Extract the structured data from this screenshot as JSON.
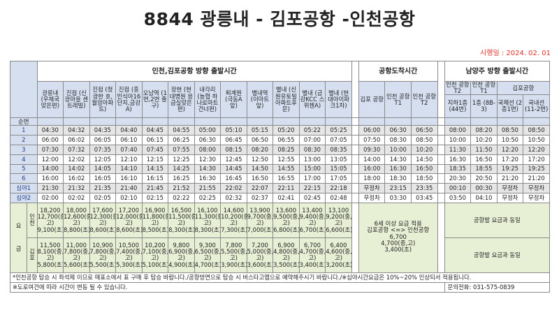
{
  "title": "8844 광릉내 - 김포공항 -인천공항",
  "effective_date": "시행일 : 2024. 02. 01",
  "headers": {
    "group1": "인천,김포공항 방향 출발시간",
    "group2": "공항도착시간",
    "group3": "남양주 방향 출발시간",
    "seq": "순번",
    "stops": [
      "광릉내 (우체국 맞은편)",
      "진접 (신광마을 센트레빌)",
      "진접 (청광한 호, 월암아파트)",
      "진접 (흥인식아16단지,금강A)",
      "오남역 (1번,2번 출구)",
      "장현 (현대병원 응급실맞은편)",
      "내각리 (농협 하나로마트 건너편)",
      "퇴계원 (극동A 앞)",
      "별내역 (이마트 앞)",
      "별내 (신원유토빌아파트후문)",
      "별내 (금강KCC 스위첸A)",
      "별내 (현대아이파크1차)"
    ],
    "arrive": [
      "김포 공항",
      "인천 공항 T1",
      "인천 공항 T2"
    ],
    "ret_top": [
      "인천 공항 T2",
      "인천 공항 T1"
    ],
    "ret_gimpo": "김포공항",
    "ret_sub": [
      "지하1층 (44번)",
      "1층 (8B-3)",
      "국제선 (2층1번)",
      "국내선 (11-2번)"
    ]
  },
  "rows": [
    {
      "seq": "1",
      "dep": [
        "04:30",
        "04:32",
        "04:35",
        "04:40",
        "04:45",
        "04:55",
        "05:00",
        "05:10",
        "05:15",
        "05:20",
        "05:22",
        "05:25"
      ],
      "arr": [
        "06:00",
        "06:30",
        "06:50"
      ],
      "ret": [
        "08:00",
        "08:20",
        "08:50",
        "08:50"
      ]
    },
    {
      "seq": "2",
      "dep": [
        "06:00",
        "06:02",
        "06:05",
        "06:10",
        "06:15",
        "06:25",
        "06:30",
        "06:45",
        "06:50",
        "06:55",
        "07:00",
        "07:05"
      ],
      "arr": [
        "07:50",
        "08:30",
        "08:50"
      ],
      "ret": [
        "10:00",
        "10:20",
        "10:50",
        "10:50"
      ]
    },
    {
      "seq": "3",
      "dep": [
        "07:30",
        "07:32",
        "07:35",
        "07:40",
        "07:45",
        "07:55",
        "08:00",
        "08:15",
        "08:20",
        "08:25",
        "08:30",
        "08:35"
      ],
      "arr": [
        "09:30",
        "10:00",
        "10:20"
      ],
      "ret": [
        "11:30",
        "11:50",
        "12:20",
        "12:20"
      ]
    },
    {
      "seq": "4",
      "dep": [
        "12:00",
        "12:02",
        "12:05",
        "12:10",
        "12:15",
        "12:25",
        "12:30",
        "12:45",
        "12:50",
        "12:55",
        "13:00",
        "13:05"
      ],
      "arr": [
        "14:00",
        "14:30",
        "14:50"
      ],
      "ret": [
        "16:30",
        "16:50",
        "17:20",
        "17:20"
      ]
    },
    {
      "seq": "5",
      "dep": [
        "14:00",
        "14:02",
        "14:05",
        "14:10",
        "14:15",
        "14:25",
        "14:30",
        "14:45",
        "14:50",
        "14:55",
        "15:00",
        "15:05"
      ],
      "arr": [
        "16:00",
        "16:30",
        "16:50"
      ],
      "ret": [
        "18:35",
        "18:55",
        "19:25",
        "19:25"
      ]
    },
    {
      "seq": "6",
      "dep": [
        "16:00",
        "16:02",
        "16:05",
        "16:10",
        "16:15",
        "16:25",
        "16:30",
        "16:45",
        "16:50",
        "16:55",
        "17:00",
        "17:05"
      ],
      "arr": [
        "18:00",
        "18:30",
        "18:50"
      ],
      "ret": [
        "20:30",
        "20:50",
        "21:20",
        "21:20"
      ]
    },
    {
      "seq": "심야1",
      "dep": [
        "21:30",
        "21:32",
        "21:35",
        "21:40",
        "21:45",
        "21:52",
        "21:55",
        "22:02",
        "22:07",
        "22:11",
        "22:15",
        "22:18"
      ],
      "arr": [
        "무정차",
        "23:15",
        "23:35"
      ],
      "ret": [
        "00:10",
        "00:30",
        "무정차",
        "무정차"
      ]
    },
    {
      "seq": "심야2",
      "dep": [
        "02:00",
        "02:02",
        "02:05",
        "02:10",
        "02:15",
        "02:22",
        "02:25",
        "02:32",
        "02:37",
        "02:41",
        "02:45",
        "02:48"
      ],
      "arr": [
        "무정차",
        "03:30",
        "03:45"
      ],
      "ret": [
        "03:50",
        "04:10",
        "무정차",
        "무정차"
      ]
    }
  ],
  "fare": {
    "label_top": "요",
    "label_bottom": "금",
    "incheon_label": "인천",
    "gimpo_label": "김포",
    "incheon": [
      [
        "18,200",
        "12,700(중,고)",
        "9,100(초)"
      ],
      [
        "18,000",
        "12,600(중,고)",
        "8,800(초)"
      ],
      [
        "17,600",
        "12,300(중,고)",
        "8,600(초)"
      ],
      [
        "17,200",
        "12,000(중,고)",
        "8,600(초)"
      ],
      [
        "16,900",
        "11,800(중,고)",
        "8,500(초)"
      ],
      [
        "16,500",
        "11,500(중,고)",
        "8,300(초)"
      ],
      [
        "16,100",
        "11,300(중,고)",
        "8,300(초)"
      ],
      [
        "14,600",
        "10,200(중,고)",
        "7,300(초)"
      ],
      [
        "13,900",
        "9,700(중,고)",
        "7,000(초)"
      ],
      [
        "13,600",
        "9,500(중,고)",
        "6,800(초)"
      ],
      [
        "13,400",
        "9,400(중,고)",
        "6,700(초)"
      ],
      [
        "13,100",
        "9,200(중,고)",
        "6,600(초)"
      ]
    ],
    "gimpo": [
      [
        "11,500",
        "8,100(중,고)",
        "5,800(초)"
      ],
      [
        "11,000",
        "7,800(중,고)",
        "5,600(초)"
      ],
      [
        "10,900",
        "7,800(중,고)",
        "5,500(초)"
      ],
      [
        "10,500",
        "7,400(중,고)",
        "5,300(초)"
      ],
      [
        "10,200",
        "7,100(중,고)",
        "5,100(초)"
      ],
      [
        "9,800",
        "6,900(중,고)",
        "4,900(초)"
      ],
      [
        "9,300",
        "6,500(중,고)",
        "4,700(초)"
      ],
      [
        "7,800",
        "5,500(중,고)",
        "3,900(초)"
      ],
      [
        "7,200",
        "5,000(중,고)",
        "3,600(초)"
      ],
      [
        "6,900",
        "4,800(중,고)",
        "3,500(초)"
      ],
      [
        "6,700",
        "4,700(중,고)",
        "3,400(초)"
      ],
      [
        "6,400",
        "4,600(중,고)",
        "3,200(초)"
      ]
    ],
    "note_lines": [
      "6세 이상 요금 적용",
      "김포공항 <=> 인천공항",
      "6,700",
      "4,700(중,고)",
      "3,400(초)"
    ],
    "same_as_airport_1": "공항발 요금과 동일",
    "same_as_airport_2": "공항발 요금과 동일"
  },
  "footer": {
    "note1": "*인천공항 탑승 시 좌석제 이므로 매표소에서 표 구매 후 탑승 바랍니다./공항방면으로 탑승 시 버스타고앱으로 예약해주시기 바랍니다./※심야시간요금은 10%~20% 인상되서 적용됩니다.",
    "note2": "※도로여건에 따라 시간이 변동 될 수 있습니다.",
    "phone": "문의전화: 031-575-0839"
  },
  "colors": {
    "header_blue": "#d5dff0",
    "row_gray": "#e6e6e6",
    "fare_green": "#e7efd5",
    "date_red": "#e0322a"
  }
}
